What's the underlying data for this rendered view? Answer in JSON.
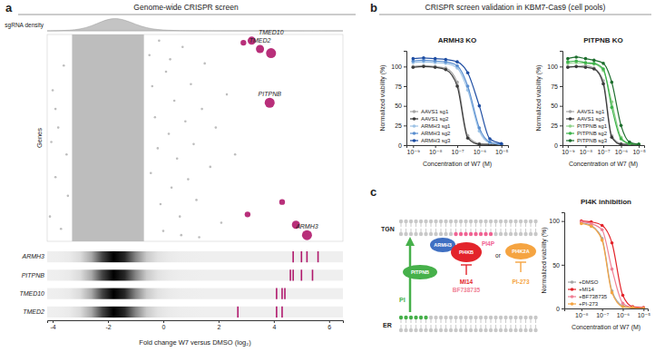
{
  "figure": {
    "panels": [
      {
        "label": "a",
        "header": "Genome-wide CRISPR screen"
      },
      {
        "label": "b",
        "header": "CRISPR screen validation in KBM7-Cas9 (cell pools)"
      },
      {
        "label": "c"
      }
    ]
  },
  "chart_data": [
    {
      "type": "area",
      "y_label": "sgRNA density",
      "x": [
        -4.2,
        -3.8,
        -3.4,
        -3.0,
        -2.6,
        -2.2,
        -1.8,
        -1.4,
        -1.0,
        -0.6,
        -0.2,
        0.2,
        0.6,
        1.0,
        1.5,
        2.0,
        3.0,
        4.0,
        5.0,
        6.5
      ],
      "values": [
        0,
        0.01,
        0.04,
        0.13,
        0.36,
        0.76,
        1.0,
        0.86,
        0.5,
        0.22,
        0.09,
        0.04,
        0.02,
        0.01,
        0.005,
        0.002,
        0.001,
        0,
        0,
        0
      ],
      "xlim": [
        -4.2,
        6.5
      ],
      "ylim": [
        0,
        1.05
      ],
      "tick_labels": false,
      "color": "#c4c4c4"
    },
    {
      "type": "scatter",
      "y_label": "Genes",
      "xlim": [
        -4.2,
        6.5
      ],
      "ylim": [
        0,
        100
      ],
      "tick_labels": false,
      "bulk_range": [
        -3.3,
        -0.7
      ],
      "series": [
        {
          "color": "#bdbdbd",
          "x": [
            -4.1,
            -3.9,
            -3.8,
            -4.0,
            -3.6,
            -3.7,
            -3.5,
            -3.9,
            -3.45,
            -4.05,
            -0.5,
            -0.4,
            -0.3,
            -0.2,
            -0.45,
            -0.1,
            0.0,
            0.1,
            0.2,
            0.3,
            0.4,
            0.5,
            0.6,
            0.7,
            0.8,
            0.9,
            1.0,
            1.1,
            1.2,
            1.4,
            1.5,
            1.7,
            1.9,
            2.1,
            2.3,
            2.6,
            0.25,
            -0.15,
            0.65,
            1.3
          ],
          "values": [
            12,
            31,
            55,
            73,
            85,
            6,
            42,
            64,
            22,
            48,
            90,
            75,
            60,
            45,
            33,
            18,
            5,
            82,
            52,
            26,
            68,
            40,
            12,
            94,
            58,
            30,
            76,
            47,
            20,
            64,
            86,
            36,
            55,
            9,
            71,
            42,
            88,
            97,
            3,
            2
          ]
        },
        {
          "color": "#b0186c",
          "x": [
            2.9,
            3.2,
            3.5,
            3.9,
            3.85,
            3.05,
            4.3,
            4.8,
            5.2
          ],
          "values": [
            96,
            97,
            93,
            91,
            67,
            13,
            19,
            8,
            3
          ],
          "sizes": [
            1,
            2,
            2,
            3,
            3,
            1,
            1,
            2,
            3
          ],
          "labels": [
            null,
            null,
            "TMED2",
            "TMED10",
            "PITPNB",
            null,
            null,
            null,
            "ARMH3"
          ]
        }
      ]
    },
    {
      "type": "strip",
      "categories": [
        "ARMH3",
        "PITPNB",
        "TMED10",
        "TMED2"
      ],
      "values": [
        [
          4.7,
          5.0,
          5.2,
          5.6
        ],
        [
          4.6,
          4.7,
          5.0,
          5.4
        ],
        [
          4.1,
          4.3,
          4.4
        ],
        [
          2.7,
          4.1,
          4.3
        ]
      ],
      "color": "#b0186c",
      "xlim": [
        -4.2,
        6.5
      ],
      "xticks": [
        -4,
        -2,
        0,
        2,
        4,
        6
      ],
      "x_label": "Fold change W7 versus DMSO (log₂)"
    },
    {
      "type": "line",
      "title": "ARMH3 KO",
      "log": "x",
      "marker": "circle",
      "legend": "lower left",
      "x": [
        1e-09,
        3e-09,
        1e-08,
        3e-08,
        1e-07,
        3e-07,
        1e-06,
        3e-06,
        1e-05
      ],
      "xlim": [
        5e-10,
        2e-05
      ],
      "xticks": [
        {
          "value": 1e-09,
          "label": "10⁻⁹"
        },
        {
          "value": 1e-08,
          "label": "10⁻⁸"
        },
        {
          "value": 1e-07,
          "label": "10⁻⁷"
        },
        {
          "value": 1e-06,
          "label": "10⁻⁶"
        },
        {
          "value": 1e-05,
          "label": "10⁻⁵"
        }
      ],
      "ylim": [
        0,
        120
      ],
      "yticks": [
        0,
        25,
        50,
        75,
        100
      ],
      "x_label": "Concentration of W7 (M)",
      "y_label": "Normalized viability (%)",
      "series": [
        {
          "name": "AAVS1 sg1",
          "color": "#a6a6a6",
          "values": [
            100,
            101,
            100,
            98,
            80,
            12,
            2,
            1,
            1
          ]
        },
        {
          "name": "AAVS1 sg2",
          "color": "#3a3a3a",
          "values": [
            99,
            100,
            99,
            96,
            75,
            9,
            1,
            1,
            0
          ]
        },
        {
          "name": "ARMH3 sg1",
          "color": "#9ec3e6",
          "values": [
            105,
            106,
            105,
            104,
            98,
            70,
            18,
            3,
            1
          ]
        },
        {
          "name": "ARMH3 sg2",
          "color": "#5b8fd0",
          "values": [
            107,
            108,
            107,
            106,
            101,
            75,
            22,
            4,
            1
          ]
        },
        {
          "name": "ARMH3 sg3",
          "color": "#1f4ea3",
          "values": [
            110,
            111,
            110,
            109,
            106,
            92,
            50,
            8,
            2
          ]
        }
      ]
    },
    {
      "type": "line",
      "title": "PITPNB KO",
      "log": "x",
      "marker": "circle",
      "legend": "lower left",
      "x": [
        1e-09,
        3e-09,
        1e-08,
        3e-08,
        1e-07,
        3e-07,
        1e-06,
        3e-06,
        1e-05
      ],
      "xlim": [
        5e-10,
        2e-05
      ],
      "xticks": [
        {
          "value": 1e-09,
          "label": "10⁻⁹"
        },
        {
          "value": 1e-08,
          "label": "10⁻⁸"
        },
        {
          "value": 1e-07,
          "label": "10⁻⁷"
        },
        {
          "value": 1e-06,
          "label": "10⁻⁶"
        },
        {
          "value": 1e-05,
          "label": "10⁻⁵"
        }
      ],
      "ylim": [
        0,
        120
      ],
      "yticks": [
        0,
        25,
        50,
        75,
        100
      ],
      "x_label": "Concentration of W7 (M)",
      "y_label": "Normalized viability (%)",
      "series": [
        {
          "name": "AAVS1 sg1",
          "color": "#a6a6a6",
          "values": [
            100,
            100,
            101,
            98,
            82,
            12,
            2,
            1,
            1
          ]
        },
        {
          "name": "AAVS1 sg2",
          "color": "#3a3a3a",
          "values": [
            99,
            100,
            99,
            97,
            78,
            10,
            1,
            1,
            0
          ]
        },
        {
          "name": "PITPNB sg1",
          "color": "#8fd18a",
          "values": [
            104,
            105,
            104,
            103,
            95,
            55,
            10,
            2,
            1
          ]
        },
        {
          "name": "PITPNB sg2",
          "color": "#3cb34a",
          "values": [
            106,
            107,
            105,
            104,
            97,
            48,
            8,
            2,
            1
          ]
        },
        {
          "name": "PITPNB sg3",
          "color": "#1e6e2e",
          "values": [
            110,
            112,
            110,
            108,
            104,
            80,
            25,
            4,
            1
          ]
        }
      ]
    },
    {
      "type": "line",
      "title": "PI4K inhibition",
      "log": "x",
      "marker": "circle",
      "legend": "lower left",
      "x": [
        1e-08,
        3e-08,
        1e-07,
        3e-07,
        1e-06,
        3e-06,
        1e-05
      ],
      "xlim": [
        1.5e-09,
        1.6e-05
      ],
      "xticks": [
        {
          "value": 1e-08,
          "label": "10⁻⁸"
        },
        {
          "value": 1e-07,
          "label": "10⁻⁷"
        },
        {
          "value": 1e-06,
          "label": "10⁻⁶"
        },
        {
          "value": 1e-05,
          "label": "10⁻⁵"
        }
      ],
      "ylim": [
        0,
        110
      ],
      "yticks": [
        0,
        50,
        100
      ],
      "x_label": "Concentration of W7 (M)",
      "y_label": "Normalized viability (%)",
      "series": [
        {
          "name": "+DMSO",
          "color": "#a6a6a6",
          "values": [
            98,
            95,
            80,
            20,
            3,
            1,
            0
          ]
        },
        {
          "name": "+MI14",
          "color": "#e3242b",
          "values": [
            100,
            99,
            95,
            75,
            15,
            2,
            1
          ]
        },
        {
          "name": "+BF738735",
          "color": "#f07f95",
          "values": [
            99,
            97,
            90,
            45,
            6,
            1,
            0
          ]
        },
        {
          "name": "+PI-273",
          "color": "#f5a441",
          "values": [
            97,
            94,
            78,
            18,
            2,
            1,
            0
          ]
        }
      ]
    }
  ],
  "diagram": {
    "membranes": [
      {
        "label": "TGN"
      },
      {
        "label": "ER"
      }
    ],
    "transfer": {
      "protein": "PITPNB",
      "lipid": "PI",
      "color": "#46b04a"
    },
    "complex": {
      "proteins": [
        {
          "label": "ARMH3",
          "color": "#3f6fc2"
        },
        {
          "label": "PI4KB",
          "color": "#e3242b"
        }
      ],
      "inhibitors": [
        {
          "label": "MI14",
          "color": "#e3242b"
        },
        {
          "label": "BF738735",
          "color": "#f07f95"
        }
      ]
    },
    "product": {
      "label": "PI4P",
      "color": "#f06292"
    },
    "alternative": {
      "connector": "or",
      "label": "PI4K2A",
      "color": "#f5a441",
      "inhibitors": [
        {
          "label": "PI-273",
          "color": "#f5a441"
        }
      ]
    }
  }
}
